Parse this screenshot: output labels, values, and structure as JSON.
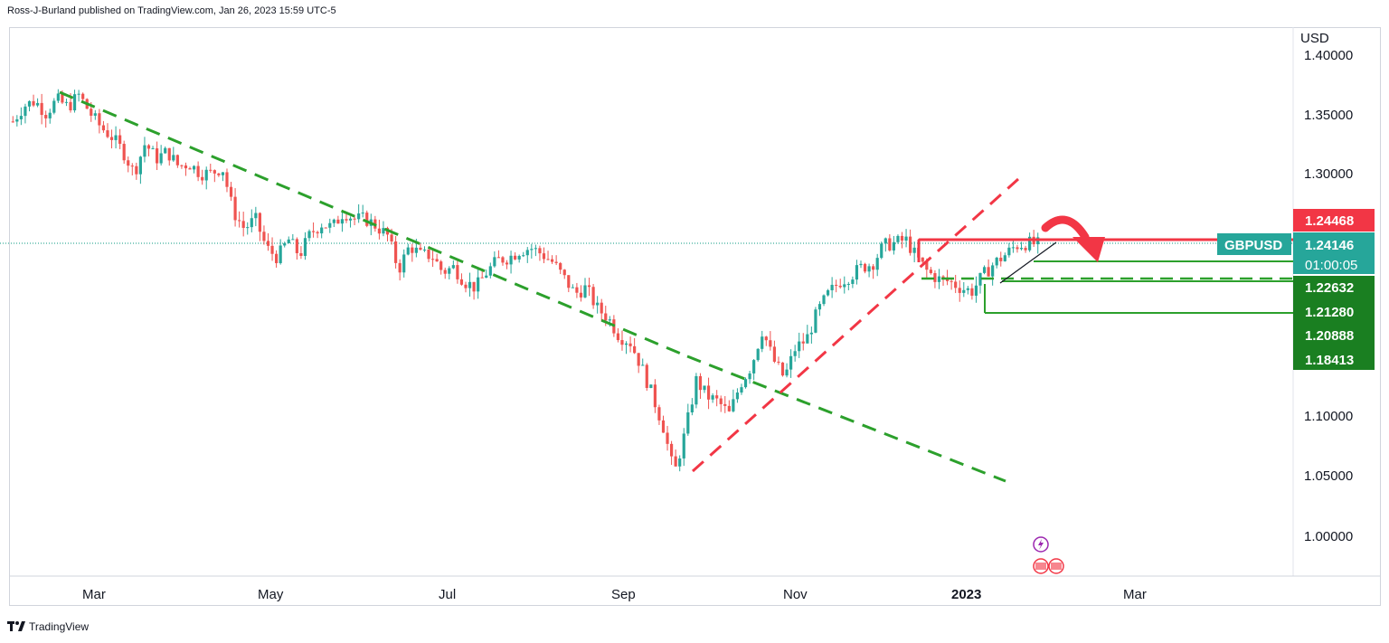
{
  "header": {
    "published": "Ross-J-Burland published on TradingView.com, Jan 26, 2023 15:59 UTC-5"
  },
  "footer": {
    "brand": "TradingView"
  },
  "colors": {
    "bull": "#26a69a",
    "bear": "#ef5350",
    "red": "#f23645",
    "green": "#089981",
    "trend_green": "#2ca02c"
  },
  "chart_data": {
    "type": "candlestick",
    "symbol": "GBPUSD",
    "currency": "USD",
    "y_ticks": [
      "1.40000",
      "1.35000",
      "1.30000",
      "1.10000",
      "1.05000",
      "1.00000"
    ],
    "x_ticks": [
      {
        "label": "Mar",
        "bold": false
      },
      {
        "label": "May",
        "bold": false
      },
      {
        "label": "Jul",
        "bold": false
      },
      {
        "label": "Sep",
        "bold": false
      },
      {
        "label": "Nov",
        "bold": false
      },
      {
        "label": "2023",
        "bold": true
      },
      {
        "label": "Mar",
        "bold": false
      }
    ],
    "ylim": [
      0.965,
      1.41
    ],
    "price_labels": [
      {
        "text": "1.24468",
        "value": 1.24468,
        "color": "#f23645",
        "kind": "resistance"
      },
      {
        "text": "1.24146",
        "value": 1.24146,
        "color": "#089981",
        "kind": "last",
        "symbol": "GBPUSD",
        "countdown": "01:00:05"
      },
      {
        "text": "1.22632",
        "value": 1.22632,
        "color": "#089981",
        "kind": "support"
      },
      {
        "text": "1.21280",
        "value": 1.2128,
        "color": "#089981",
        "kind": "support"
      },
      {
        "text": "1.20888",
        "value": 1.20888,
        "color": "#089981",
        "kind": "support"
      },
      {
        "text": "1.18413",
        "value": 1.18413,
        "color": "#089981",
        "kind": "support"
      }
    ],
    "price_path": [
      [
        1.343,
        1.356
      ],
      [
        1.36,
        1.35
      ],
      [
        1.361,
        1.355
      ],
      [
        1.365,
        1.35
      ],
      [
        1.338,
        1.33
      ],
      [
        1.318,
        1.3
      ],
      [
        1.325,
        1.312
      ],
      [
        1.318,
        1.306
      ],
      [
        1.308,
        1.3
      ],
      [
        1.3,
        1.305
      ],
      [
        1.268,
        1.254
      ],
      [
        1.262,
        1.238
      ],
      [
        1.23,
        1.245
      ],
      [
        1.232,
        1.25
      ],
      [
        1.258,
        1.255
      ],
      [
        1.268,
        1.262
      ],
      [
        1.262,
        1.256
      ],
      [
        1.248,
        1.22
      ],
      [
        1.24,
        1.232
      ],
      [
        1.232,
        1.218
      ],
      [
        1.222,
        1.21
      ],
      [
        1.205,
        1.218
      ],
      [
        1.228,
        1.23
      ],
      [
        1.236,
        1.238
      ],
      [
        1.233,
        1.226
      ],
      [
        1.213,
        1.2
      ],
      [
        1.205,
        1.188
      ],
      [
        1.18,
        1.165
      ],
      [
        1.16,
        1.14
      ],
      [
        1.116,
        1.09
      ],
      [
        1.05,
        1.085
      ],
      [
        1.128,
        1.115
      ],
      [
        1.11,
        1.1
      ],
      [
        1.125,
        1.14
      ],
      [
        1.17,
        1.145
      ],
      [
        1.13,
        1.155
      ],
      [
        1.162,
        1.185
      ],
      [
        1.2,
        1.21
      ],
      [
        1.215,
        1.222
      ],
      [
        1.225,
        1.24
      ],
      [
        1.242,
        1.245
      ],
      [
        1.23,
        1.218
      ],
      [
        1.212,
        1.21
      ],
      [
        1.205,
        1.202
      ],
      [
        1.215,
        1.225
      ],
      [
        1.232,
        1.24
      ],
      [
        1.242,
        1.241
      ]
    ],
    "trendlines": [
      {
        "name": "downtrend-1",
        "from": [
          "Feb 18",
          1.367
        ],
        "to": [
          "Sep 26",
          1.152
        ],
        "style": "dashed",
        "color": "green"
      },
      {
        "name": "downtrend-2",
        "from": [
          "Sep 26",
          1.152
        ],
        "to": [
          "Jan 10",
          1.044
        ],
        "style": "dashed",
        "color": "green"
      },
      {
        "name": "uptrend",
        "from": [
          "Sep 26",
          1.053
        ],
        "to": [
          "Jan 12",
          1.295
        ],
        "style": "dashed",
        "color": "red"
      }
    ]
  }
}
